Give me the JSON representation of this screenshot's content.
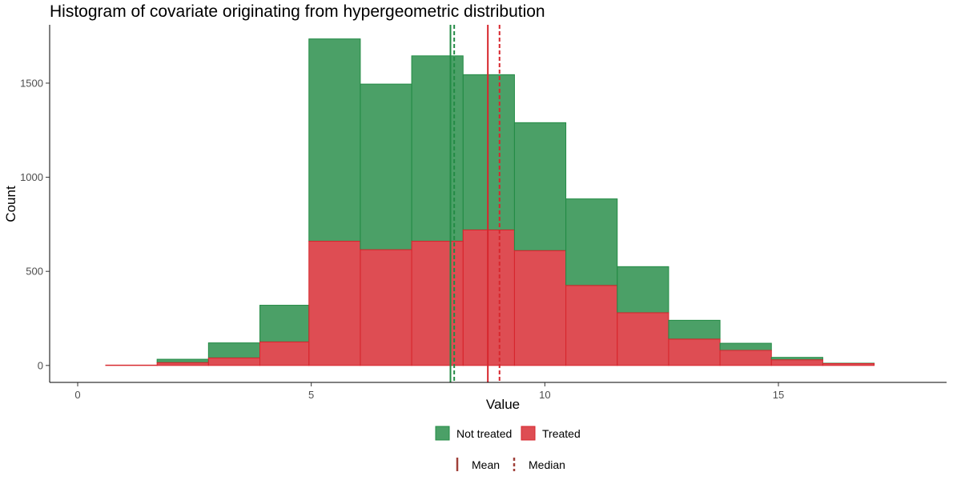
{
  "chart_data": {
    "type": "bar",
    "subtype": "histogram-stacked",
    "title": "Histogram of covariate originating from hypergeometric distribution",
    "xlabel": "Value",
    "ylabel": "Count",
    "xlim": [
      -0.6,
      18.6
    ],
    "ylim": [
      -90,
      1810
    ],
    "x_ticks": [
      0,
      5,
      10,
      15
    ],
    "y_ticks": [
      0,
      500,
      1000,
      1500
    ],
    "grid": false,
    "legend_position": "bottom",
    "bin_edges": [
      0.6,
      1.7,
      2.8,
      3.9,
      4.95,
      6.05,
      7.15,
      8.25,
      9.35,
      10.45,
      11.55,
      12.65,
      13.75,
      14.85,
      15.95,
      17.05
    ],
    "series": [
      {
        "name": "Not treated",
        "color": "#238b45",
        "values": [
          0,
          18,
          80,
          195,
          1075,
          880,
          985,
          825,
          680,
          460,
          245,
          100,
          38,
          13,
          2
        ]
      },
      {
        "name": "Treated",
        "color": "#d7262d",
        "values": [
          2,
          15,
          40,
          125,
          660,
          615,
          660,
          720,
          610,
          425,
          280,
          140,
          80,
          30,
          10
        ]
      }
    ],
    "reference_lines": [
      {
        "series": "Not treated",
        "stat": "Mean",
        "value": 7.98,
        "style": "solid",
        "color": "#238b45"
      },
      {
        "series": "Not treated",
        "stat": "Median",
        "value": 8.06,
        "style": "dashed",
        "color": "#238b45"
      },
      {
        "series": "Treated",
        "stat": "Mean",
        "value": 8.78,
        "style": "solid",
        "color": "#d7262d"
      },
      {
        "series": "Treated",
        "stat": "Median",
        "value": 9.03,
        "style": "dashed",
        "color": "#d7262d"
      }
    ],
    "legend_fill": {
      "items": [
        {
          "label": "Not treated",
          "color": "#238b45"
        },
        {
          "label": "Treated",
          "color": "#d7262d"
        }
      ]
    },
    "legend_lines": {
      "color": "#a0413a",
      "items": [
        {
          "label": "Mean",
          "style": "solid"
        },
        {
          "label": "Median",
          "style": "dashed"
        }
      ]
    }
  }
}
